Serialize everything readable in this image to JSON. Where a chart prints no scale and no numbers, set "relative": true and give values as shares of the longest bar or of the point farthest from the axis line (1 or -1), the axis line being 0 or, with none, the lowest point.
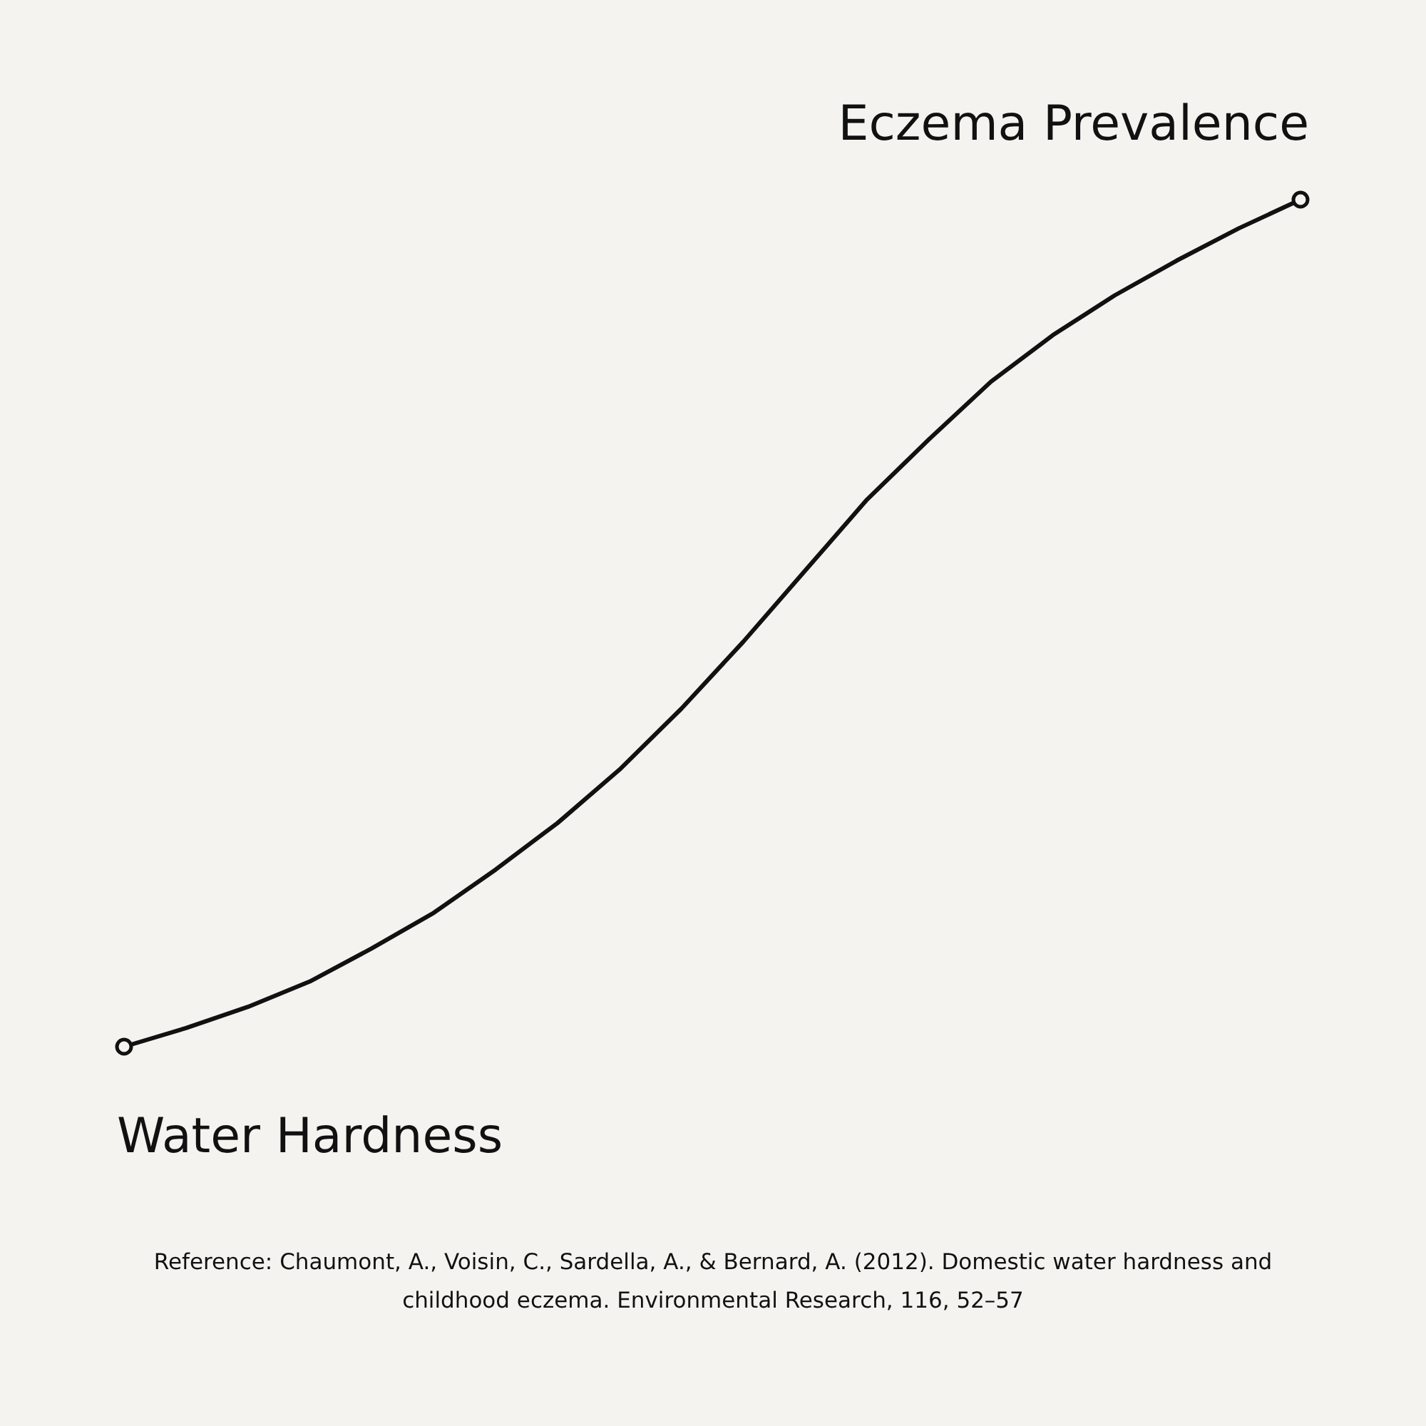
{
  "chart_data": {
    "type": "line",
    "relative": true,
    "xlabel": "Water Hardness",
    "ylabel": "Eczema Prevalence",
    "categories": [
      null,
      null,
      null,
      null,
      null,
      null,
      null,
      null,
      null,
      null,
      null,
      null,
      null,
      null,
      null,
      null,
      null,
      null,
      null,
      null
    ],
    "series": [
      {
        "color": "#111111",
        "values": [
          0,
          0.022,
          0.047,
          0.077,
          0.116,
          0.158,
          0.209,
          0.264,
          0.327,
          0.399,
          0.478,
          0.562,
          0.646,
          0.717,
          0.785,
          0.84,
          0.887,
          0.928,
          0.966,
          1
        ]
      }
    ],
    "grid": false,
    "tick_labels": false,
    "annotations": [
      "Reference: Chaumont, A., Voisin, C., Sardella, A., & Bernard, A. (2012). Domestic water hardness and childhood eczema. Environmental Research, 116, 52–57"
    ]
  }
}
